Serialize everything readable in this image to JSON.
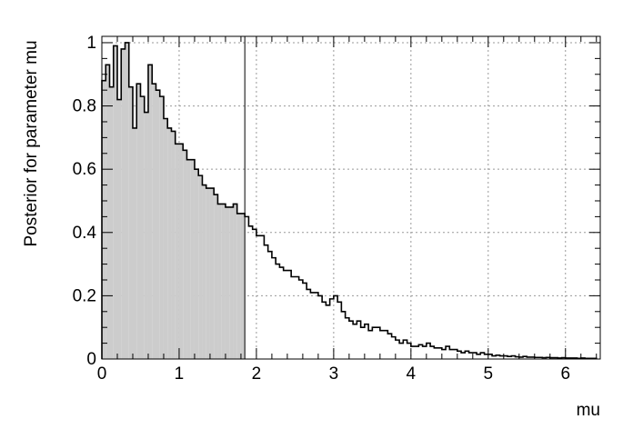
{
  "chart_data": {
    "type": "area",
    "title": "",
    "xlabel": "mu",
    "ylabel": "Posterior for parameter mu",
    "xlim": [
      0,
      6.45
    ],
    "ylim": [
      0,
      1.02
    ],
    "grid": true,
    "xticks": [
      0,
      1,
      2,
      3,
      4,
      5,
      6
    ],
    "yticks": [
      0,
      0.2,
      0.4,
      0.6,
      0.8,
      1
    ],
    "xtick_labels": [
      "0",
      "1",
      "2",
      "3",
      "4",
      "5",
      "6"
    ],
    "ytick_labels": [
      "0",
      "0.2",
      "0.4",
      "0.6",
      "0.8",
      "1"
    ],
    "bin_width": 0.05,
    "x_start": 0,
    "values": [
      0.88,
      0.93,
      0.86,
      0.99,
      0.82,
      0.98,
      1.0,
      0.86,
      0.73,
      0.87,
      0.83,
      0.78,
      0.93,
      0.87,
      0.85,
      0.83,
      0.76,
      0.73,
      0.72,
      0.68,
      0.68,
      0.66,
      0.63,
      0.63,
      0.6,
      0.58,
      0.55,
      0.54,
      0.54,
      0.52,
      0.49,
      0.49,
      0.48,
      0.48,
      0.49,
      0.46,
      0.46,
      0.45,
      0.42,
      0.41,
      0.39,
      0.39,
      0.36,
      0.34,
      0.32,
      0.3,
      0.29,
      0.28,
      0.28,
      0.26,
      0.26,
      0.25,
      0.24,
      0.22,
      0.21,
      0.21,
      0.2,
      0.18,
      0.17,
      0.19,
      0.2,
      0.18,
      0.15,
      0.13,
      0.12,
      0.11,
      0.12,
      0.1,
      0.11,
      0.09,
      0.1,
      0.1,
      0.09,
      0.09,
      0.08,
      0.07,
      0.06,
      0.05,
      0.06,
      0.05,
      0.04,
      0.04,
      0.045,
      0.04,
      0.05,
      0.04,
      0.035,
      0.035,
      0.03,
      0.04,
      0.03,
      0.03,
      0.025,
      0.02,
      0.025,
      0.02,
      0.02,
      0.015,
      0.02,
      0.015,
      0.015,
      0.01,
      0.012,
      0.01,
      0.01,
      0.008,
      0.01,
      0.007,
      0.006,
      0.008,
      0.006,
      0.006,
      0.005,
      0.005,
      0.004,
      0.005,
      0.004,
      0.004,
      0.003,
      0.004,
      0.003,
      0.003,
      0.003,
      0.002,
      0.003,
      0.002,
      0.002,
      0.002
    ],
    "shaded_until": 1.85,
    "vertical_line_x": 1.85,
    "colors": {
      "fill": "#cccccc",
      "line": "#000000",
      "grid": "#999999",
      "background": "#ffffff"
    }
  }
}
